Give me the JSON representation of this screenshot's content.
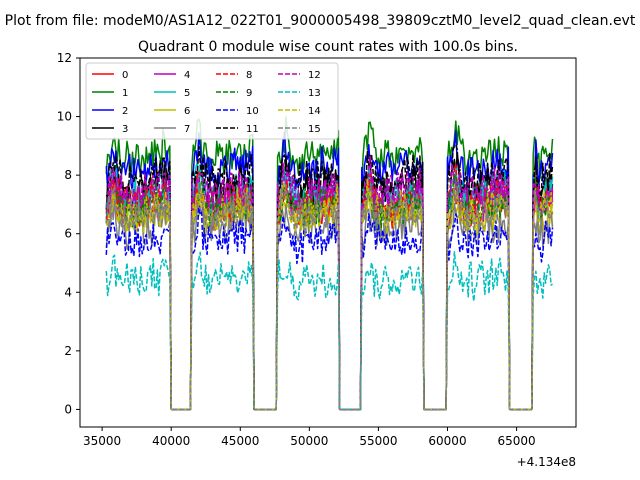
{
  "suptitle": "Plot from file: modeM0/AS1A12_022T01_9000005498_39809cztM0_level2_quad_clean.evt",
  "chart_data": {
    "type": "line",
    "title": "Quadrant 0 module wise count rates with 100.0s bins.",
    "xlabel": "",
    "ylabel": "",
    "x_offset_label": "+4.134e8",
    "xlim": [
      33400,
      69300
    ],
    "ylim": [
      -0.6,
      12
    ],
    "xticks": [
      35000,
      40000,
      45000,
      50000,
      55000,
      60000,
      65000
    ],
    "xtick_labels": [
      "35000",
      "40000",
      "45000",
      "50000",
      "55000",
      "60000",
      "65000"
    ],
    "yticks": [
      0,
      2,
      4,
      6,
      8,
      10,
      12
    ],
    "ytick_labels": [
      "0",
      "2",
      "4",
      "6",
      "8",
      "10",
      "12"
    ],
    "grid": false,
    "legend_position": "top-left",
    "on_intervals": [
      [
        35300,
        39900
      ],
      [
        41500,
        45900
      ],
      [
        47700,
        52100
      ],
      [
        53800,
        58200
      ],
      [
        60000,
        64400
      ],
      [
        66200,
        67650
      ]
    ],
    "bin_seconds": 100,
    "series": [
      {
        "name": "0",
        "color": "#ff0000",
        "dash": "solid",
        "mean": 7.1
      },
      {
        "name": "1",
        "color": "#008000",
        "dash": "solid",
        "mean": 9.0
      },
      {
        "name": "2",
        "color": "#0000ff",
        "dash": "solid",
        "mean": 8.5
      },
      {
        "name": "3",
        "color": "#000000",
        "dash": "solid",
        "mean": 7.8
      },
      {
        "name": "4",
        "color": "#bf00bf",
        "dash": "solid",
        "mean": 7.3
      },
      {
        "name": "5",
        "color": "#00bfbf",
        "dash": "solid",
        "mean": 7.6
      },
      {
        "name": "6",
        "color": "#bfbf00",
        "dash": "solid",
        "mean": 6.8
      },
      {
        "name": "7",
        "color": "#808080",
        "dash": "solid",
        "mean": 6.4
      },
      {
        "name": "8",
        "color": "#ff0000",
        "dash": "dashed",
        "mean": 7.4
      },
      {
        "name": "9",
        "color": "#008000",
        "dash": "dashed",
        "mean": 7.2
      },
      {
        "name": "10",
        "color": "#0000ff",
        "dash": "dashed",
        "mean": 6.0
      },
      {
        "name": "11",
        "color": "#000000",
        "dash": "dashed",
        "mean": 8.2
      },
      {
        "name": "12",
        "color": "#bf00bf",
        "dash": "dashed",
        "mean": 7.7
      },
      {
        "name": "13",
        "color": "#00bfbf",
        "dash": "dashed",
        "mean": 4.6
      },
      {
        "name": "14",
        "color": "#bfbf00",
        "dash": "dashed",
        "mean": 7.0
      },
      {
        "name": "15",
        "color": "#808080",
        "dash": "dashed",
        "mean": 6.9
      }
    ]
  }
}
